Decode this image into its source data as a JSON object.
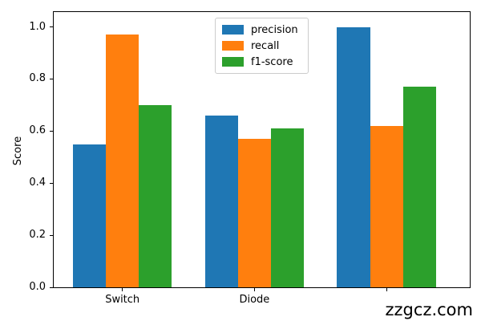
{
  "watermark": "zzgcz.com",
  "chart_data": {
    "type": "bar",
    "title": "",
    "xlabel": "",
    "ylabel": "Score",
    "categories": [
      "Switch",
      "Diode",
      ""
    ],
    "series": [
      {
        "name": "precision",
        "color": "#1f77b4",
        "values": [
          0.55,
          0.66,
          1.0
        ]
      },
      {
        "name": "recall",
        "color": "#ff7f0e",
        "values": [
          0.97,
          0.57,
          0.62
        ]
      },
      {
        "name": "f1-score",
        "color": "#2ca02c",
        "values": [
          0.7,
          0.61,
          0.77
        ]
      }
    ],
    "yticks": [
      0.0,
      0.2,
      0.4,
      0.6,
      0.8,
      1.0
    ],
    "ylim": [
      0,
      1.057
    ],
    "xlim": [
      -0.52,
      2.63
    ],
    "bar_width": 0.25,
    "grid": false,
    "legend_position": "upper center-left",
    "spine_color": "#000000",
    "note_colors": {
      "axis_text": "#000000",
      "legend_border": "#cccccc"
    }
  }
}
